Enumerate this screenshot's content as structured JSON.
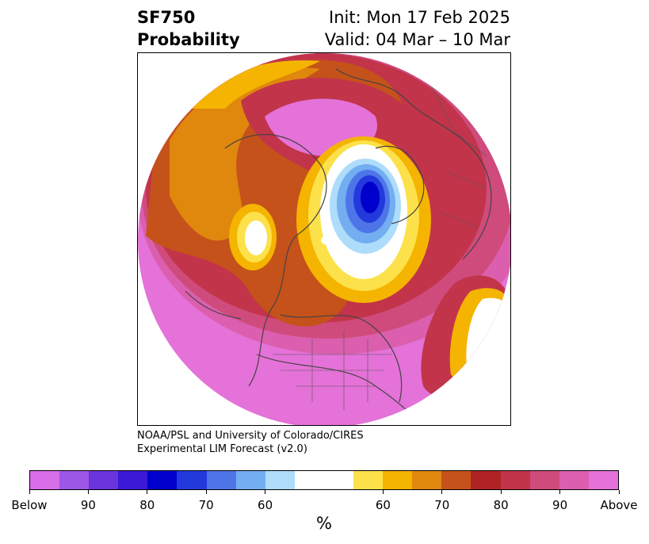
{
  "header": {
    "title_line1": "SF750",
    "title_line2": "Probability",
    "init_text": "Init: Mon 17 Feb 2025",
    "valid_text": "Valid: 04 Mar – 10 Mar"
  },
  "credit": {
    "line1": "NOAA/PSL and University of Colorado/CIRES",
    "line2": "Experimental LIM Forecast (v2.0)"
  },
  "colorbar": {
    "colors": [
      "#d86de8",
      "#9c57e6",
      "#6b34dc",
      "#3b18d6",
      "#0000cd",
      "#2339dc",
      "#4e75e8",
      "#72aef0",
      "#aedcfb",
      "#ffffff",
      "#ffffff",
      "#fde14a",
      "#f4b400",
      "#e0870e",
      "#c5521a",
      "#b02324",
      "#c2344a",
      "#cf4b7c",
      "#db5fae",
      "#e472d8"
    ],
    "labels": [
      "Below",
      "90",
      "80",
      "70",
      "60",
      "60",
      "70",
      "80",
      "90",
      "Above"
    ],
    "units": "%"
  },
  "map": {
    "colors": {
      "above_far": "#e472d8",
      "above_90": "#db5fae",
      "above_85": "#cf4b7c",
      "above_80": "#c2344a",
      "above_75": "#b02324",
      "above_70": "#c5521a",
      "above_65": "#e0870e",
      "above_60": "#f4b400",
      "above_55": "#fde14a",
      "neutral": "#ffffff",
      "below_55": "#aedcfb",
      "below_60": "#72aef0",
      "below_65": "#4e75e8",
      "below_70": "#2339dc",
      "below_75": "#0000cd",
      "coast": "#444444"
    }
  }
}
